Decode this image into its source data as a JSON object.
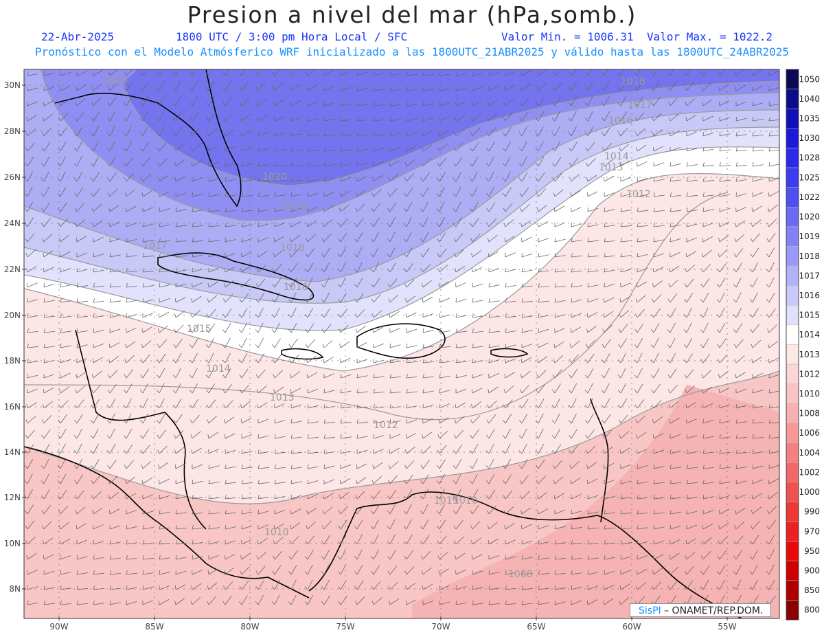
{
  "title": "Presion a nivel del mar (hPa,somb.)",
  "subtitle": {
    "date": "22-Abr-2025",
    "time": "1800 UTC / 3:00 pm Hora Local / SFC",
    "min": "Valor Min. = 1006.31",
    "max": "Valor Max. = 1022.2"
  },
  "description": "Pronóstico con el Modelo Atmósferico WRF inicializado a las 1800UTC_21ABR2025 y válido hasta las  1800UTC_24ABR2025",
  "map": {
    "lat_labels": [
      "30N",
      "28N",
      "26N",
      "24N",
      "22N",
      "20N",
      "18N",
      "16N",
      "14N",
      "12N",
      "10N",
      "8N"
    ],
    "lon_labels": [
      "90W",
      "85W",
      "80W",
      "75W",
      "70W",
      "65W",
      "60W",
      "55W"
    ],
    "contour_labels": [
      "1019",
      "1020",
      "1019",
      "1018",
      "1017",
      "1016",
      "1015",
      "1014",
      "1013",
      "1012",
      "1010",
      "1008",
      "1014",
      "1016",
      "1017",
      "1018",
      "1019",
      "1013",
      "1012",
      "1010"
    ]
  },
  "colorbar": {
    "levels": [
      "1050",
      "1040",
      "1035",
      "1030",
      "1028",
      "1025",
      "1022",
      "1020",
      "1019",
      "1018",
      "1017",
      "1016",
      "1015",
      "1014",
      "1013",
      "1012",
      "1010",
      "1008",
      "1006",
      "1004",
      "1002",
      "1000",
      "990",
      "970",
      "950",
      "900",
      "850",
      "800"
    ],
    "colors": [
      "#0a0a55",
      "#0c0c8a",
      "#1010b8",
      "#1a1ad8",
      "#2a2ae8",
      "#3c3cf0",
      "#5050f0",
      "#6a6af2",
      "#8282f4",
      "#9a9af6",
      "#b2b2f8",
      "#cacafa",
      "#e0e0fc",
      "#ffffff",
      "#fde8e8",
      "#fcd6d6",
      "#fac4c4",
      "#f8b0b0",
      "#f69898",
      "#f48080",
      "#f26868",
      "#f05050",
      "#ee3838",
      "#ec2020",
      "#e80a0a",
      "#d00000",
      "#b00000",
      "#8c0000"
    ]
  },
  "credit": {
    "brand": "SisPI",
    "text": " – ONAMET/REP.DOM."
  }
}
